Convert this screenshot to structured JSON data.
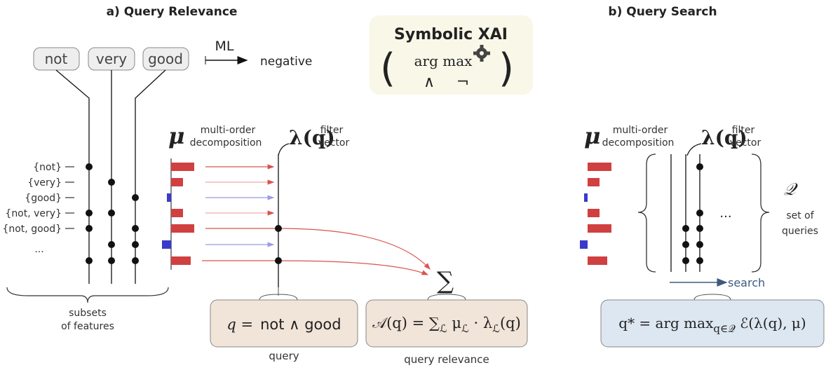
{
  "panel_a": {
    "title": "a) Query Relevance",
    "tokens": [
      "not",
      "very",
      "good"
    ],
    "ml_label": "ML",
    "output": "negative",
    "subsets": [
      "{not}",
      "{very}",
      "{good}",
      "{not, very}",
      "{not, good}",
      "..."
    ],
    "subsets_caption": [
      "subsets",
      "of features"
    ],
    "mu": "μ",
    "mu_caption": [
      "multi-order",
      "decomposition"
    ],
    "lambda": "λ(q)",
    "lambda_caption": [
      "filter",
      "vector"
    ],
    "sum": "∑",
    "query_box": [
      "q =",
      "not ∧ good"
    ],
    "query_caption": "query",
    "relevance_box": [
      "𝒜(q) = ∑",
      "ℒ",
      " μ",
      "ℒ",
      " · λ",
      "ℒ",
      "(q)"
    ],
    "relevance_caption": "query relevance"
  },
  "xai_box": {
    "title": "Symbolic XAI",
    "argmax": "arg max",
    "and": "∧",
    "not": "¬"
  },
  "panel_b": {
    "title": "b) Query Search",
    "mu": "μ",
    "mu_caption": [
      "multi-order",
      "decomposition"
    ],
    "lambda": "λ(q)",
    "lambda_caption": [
      "filter",
      "vector"
    ],
    "more": "...",
    "queries_symbol": "𝒬",
    "queries_caption": [
      "set of",
      "queries"
    ],
    "search": "search",
    "search_box": [
      "q* = arg max",
      "q∈𝒬",
      " ℰ(λ(q), μ)"
    ]
  }
}
